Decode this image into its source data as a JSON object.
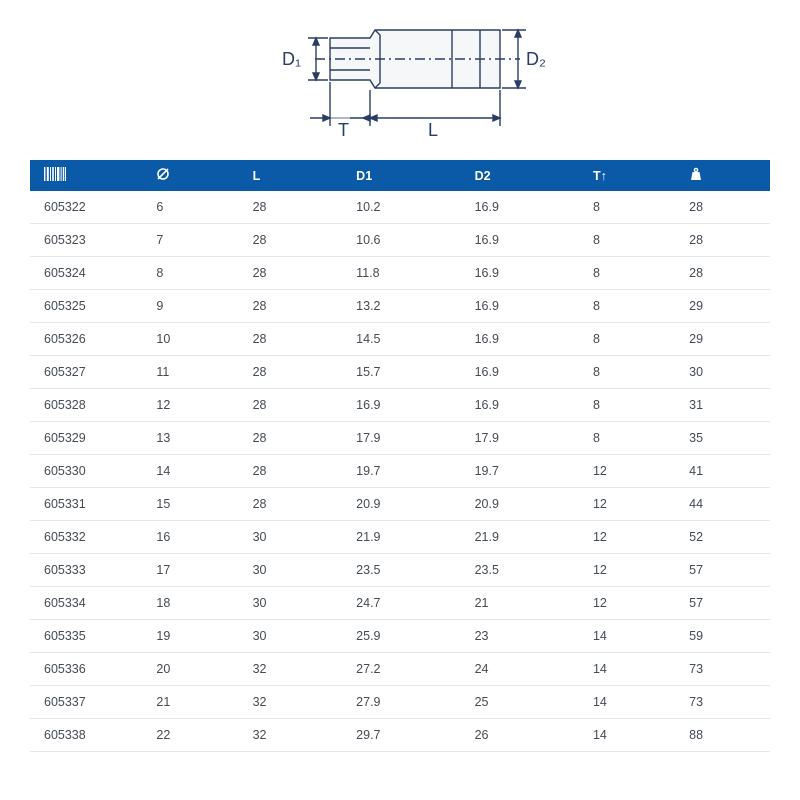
{
  "diagram": {
    "labels": {
      "d1": "D₁",
      "d2": "D₂",
      "l": "L",
      "t": "T"
    },
    "stroke_color": "#2a3d66",
    "fill_light": "#eef2f6",
    "fill_mid": "#dfe6ec"
  },
  "table": {
    "header_bg": "#0a5aa8",
    "header_fg": "#ffffff",
    "border_color": "#e1e7ec",
    "text_color": "#444b53",
    "columns": [
      {
        "key": "code",
        "icon": "barcode",
        "width": "16%"
      },
      {
        "key": "size",
        "icon": "diameter",
        "width": "13%"
      },
      {
        "key": "l",
        "label": "L",
        "width": "14%"
      },
      {
        "key": "d1",
        "label": "D1",
        "width": "16%"
      },
      {
        "key": "d2",
        "label": "D2",
        "width": "16%"
      },
      {
        "key": "t",
        "label": "T↑",
        "width": "13%"
      },
      {
        "key": "weight",
        "icon": "weight",
        "width": "12%"
      }
    ],
    "rows": [
      {
        "code": "605322",
        "size": "6",
        "l": "28",
        "d1": "10.2",
        "d2": "16.9",
        "t": "8",
        "weight": "28"
      },
      {
        "code": "605323",
        "size": "7",
        "l": "28",
        "d1": "10.6",
        "d2": "16.9",
        "t": "8",
        "weight": "28"
      },
      {
        "code": "605324",
        "size": "8",
        "l": "28",
        "d1": "11.8",
        "d2": "16.9",
        "t": "8",
        "weight": "28"
      },
      {
        "code": "605325",
        "size": "9",
        "l": "28",
        "d1": "13.2",
        "d2": "16.9",
        "t": "8",
        "weight": "29"
      },
      {
        "code": "605326",
        "size": "10",
        "l": "28",
        "d1": "14.5",
        "d2": "16.9",
        "t": "8",
        "weight": "29"
      },
      {
        "code": "605327",
        "size": "11",
        "l": "28",
        "d1": "15.7",
        "d2": "16.9",
        "t": "8",
        "weight": "30"
      },
      {
        "code": "605328",
        "size": "12",
        "l": "28",
        "d1": "16.9",
        "d2": "16.9",
        "t": "8",
        "weight": "31"
      },
      {
        "code": "605329",
        "size": "13",
        "l": "28",
        "d1": "17.9",
        "d2": "17.9",
        "t": "8",
        "weight": "35"
      },
      {
        "code": "605330",
        "size": "14",
        "l": "28",
        "d1": "19.7",
        "d2": "19.7",
        "t": "12",
        "weight": "41"
      },
      {
        "code": "605331",
        "size": "15",
        "l": "28",
        "d1": "20.9",
        "d2": "20.9",
        "t": "12",
        "weight": "44"
      },
      {
        "code": "605332",
        "size": "16",
        "l": "30",
        "d1": "21.9",
        "d2": "21.9",
        "t": "12",
        "weight": "52"
      },
      {
        "code": "605333",
        "size": "17",
        "l": "30",
        "d1": "23.5",
        "d2": "23.5",
        "t": "12",
        "weight": "57"
      },
      {
        "code": "605334",
        "size": "18",
        "l": "30",
        "d1": "24.7",
        "d2": "21",
        "t": "12",
        "weight": "57"
      },
      {
        "code": "605335",
        "size": "19",
        "l": "30",
        "d1": "25.9",
        "d2": "23",
        "t": "14",
        "weight": "59"
      },
      {
        "code": "605336",
        "size": "20",
        "l": "32",
        "d1": "27.2",
        "d2": "24",
        "t": "14",
        "weight": "73"
      },
      {
        "code": "605337",
        "size": "21",
        "l": "32",
        "d1": "27.9",
        "d2": "25",
        "t": "14",
        "weight": "73"
      },
      {
        "code": "605338",
        "size": "22",
        "l": "32",
        "d1": "29.7",
        "d2": "26",
        "t": "14",
        "weight": "88"
      }
    ]
  }
}
